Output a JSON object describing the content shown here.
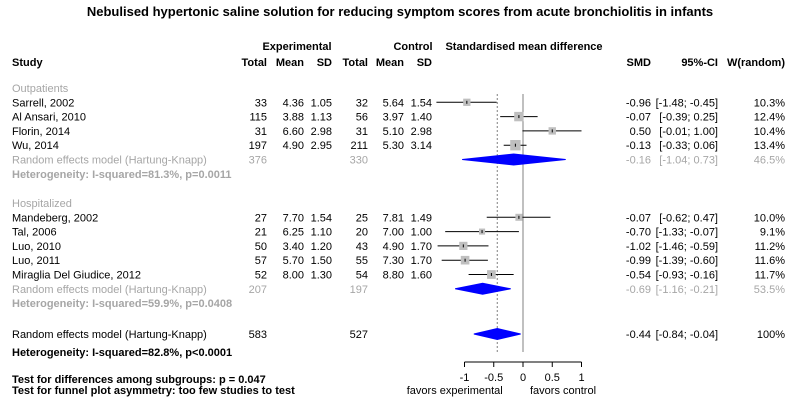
{
  "chart_data": {
    "type": "forest",
    "title": "Nebulised hypertonic saline solution for reducing symptom scores from acute bronchiolitis in infants",
    "headers": {
      "group_experimental": "Experimental",
      "group_control": "Control",
      "effect": "Standardised mean difference",
      "study": "Study",
      "total_e": "Total",
      "mean_e": "Mean",
      "sd_e": "SD",
      "total_c": "Total",
      "mean_c": "Mean",
      "sd_c": "SD",
      "smd": "SMD",
      "ci": "95%-CI",
      "weight": "W(random)"
    },
    "subgroups": [
      {
        "name": "Outpatients",
        "studies": [
          {
            "study": "Sarrell, 2002",
            "ne": "33",
            "me": "4.36",
            "sde": "1.05",
            "nc": "32",
            "mc": "5.64",
            "sdc": "1.54",
            "smd": -0.96,
            "lo": -1.48,
            "hi": -0.45,
            "smd_text": "-0.96",
            "ci_text": "[-1.48; -0.45]",
            "weight_text": "10.3%",
            "weight": 10.3
          },
          {
            "study": "Al Ansari, 2010",
            "ne": "115",
            "me": "3.88",
            "sde": "1.13",
            "nc": "56",
            "mc": "3.97",
            "sdc": "1.40",
            "smd": -0.07,
            "lo": -0.39,
            "hi": 0.25,
            "smd_text": "-0.07",
            "ci_text": "[-0.39; 0.25]",
            "weight_text": "12.4%",
            "weight": 12.4
          },
          {
            "study": "Florin, 2014",
            "ne": "31",
            "me": "6.60",
            "sde": "2.98",
            "nc": "31",
            "mc": "5.10",
            "sdc": "2.98",
            "smd": 0.5,
            "lo": -0.01,
            "hi": 1.0,
            "smd_text": "0.50",
            "ci_text": "[-0.01; 1.00]",
            "weight_text": "10.4%",
            "weight": 10.4
          },
          {
            "study": "Wu, 2014",
            "ne": "197",
            "me": "4.90",
            "sde": "2.95",
            "nc": "211",
            "mc": "5.30",
            "sdc": "3.14",
            "smd": -0.13,
            "lo": -0.33,
            "hi": 0.06,
            "smd_text": "-0.13",
            "ci_text": "[-0.33; 0.06]",
            "weight_text": "13.4%",
            "weight": 13.4
          }
        ],
        "pooled": {
          "label": "Random effects model (Hartung-Knapp)",
          "ne": "376",
          "nc": "330",
          "smd": -0.16,
          "lo": -1.04,
          "hi": 0.73,
          "smd_text": "-0.16",
          "ci_text": "[-1.04; 0.73]",
          "weight_text": "46.5%"
        },
        "heterogeneity": "Heterogeneity: I-squared=81.3%, p=0.0011"
      },
      {
        "name": "Hospitalized",
        "studies": [
          {
            "study": "Mandeberg, 2002",
            "ne": "27",
            "me": "7.70",
            "sde": "1.54",
            "nc": "25",
            "mc": "7.81",
            "sdc": "1.49",
            "smd": -0.07,
            "lo": -0.62,
            "hi": 0.47,
            "smd_text": "-0.07",
            "ci_text": "[-0.62; 0.47]",
            "weight_text": "10.0%",
            "weight": 10.0
          },
          {
            "study": "Tal, 2006",
            "ne": "21",
            "me": "6.25",
            "sde": "1.10",
            "nc": "20",
            "mc": "7.00",
            "sdc": "1.00",
            "smd": -0.7,
            "lo": -1.33,
            "hi": -0.07,
            "smd_text": "-0.70",
            "ci_text": "[-1.33; -0.07]",
            "weight_text": "9.1%",
            "weight": 9.1
          },
          {
            "study": "Luo, 2010",
            "ne": "50",
            "me": "3.40",
            "sde": "1.20",
            "nc": "43",
            "mc": "4.90",
            "sdc": "1.70",
            "smd": -1.02,
            "lo": -1.46,
            "hi": -0.59,
            "smd_text": "-1.02",
            "ci_text": "[-1.46; -0.59]",
            "weight_text": "11.2%",
            "weight": 11.2
          },
          {
            "study": "Luo, 2011",
            "ne": "57",
            "me": "5.70",
            "sde": "1.50",
            "nc": "55",
            "mc": "7.30",
            "sdc": "1.70",
            "smd": -0.99,
            "lo": -1.39,
            "hi": -0.6,
            "smd_text": "-0.99",
            "ci_text": "[-1.39; -0.60]",
            "weight_text": "11.6%",
            "weight": 11.6
          },
          {
            "study": "Miraglia Del Giudice, 2012",
            "ne": "52",
            "me": "8.00",
            "sde": "1.30",
            "nc": "54",
            "mc": "8.80",
            "sdc": "1.60",
            "smd": -0.54,
            "lo": -0.93,
            "hi": -0.16,
            "smd_text": "-0.54",
            "ci_text": "[-0.93; -0.16]",
            "weight_text": "11.7%",
            "weight": 11.7
          }
        ],
        "pooled": {
          "label": "Random effects model (Hartung-Knapp)",
          "ne": "207",
          "nc": "197",
          "smd": -0.69,
          "lo": -1.16,
          "hi": -0.21,
          "smd_text": "-0.69",
          "ci_text": "[-1.16; -0.21]",
          "weight_text": "53.5%"
        },
        "heterogeneity": "Heterogeneity: I-squared=59.9%, p=0.0408"
      }
    ],
    "overall": {
      "label": "Random effects model (Hartung-Knapp)",
      "ne": "583",
      "nc": "527",
      "smd": -0.44,
      "lo": -0.84,
      "hi": -0.04,
      "smd_text": "-0.44",
      "ci_text": "[-0.84; -0.04]",
      "weight_text": "100%"
    },
    "overall_heterogeneity": "Heterogeneity: I-squared=82.8%, p<0.0001",
    "footnotes": [
      "Test for differences among subgroups: p = 0.047",
      "Test for funnel plot asymmetry: too few studies to test"
    ],
    "xaxis": {
      "range": [
        -1,
        1
      ],
      "ticks": [
        -1,
        -0.5,
        0,
        0.5,
        1
      ],
      "tick_labels": [
        "-1",
        "-0.5",
        "0",
        "0.5",
        "1"
      ],
      "left_label": "favors experimental",
      "right_label": "favors control"
    },
    "reference_line": 0,
    "dashed_line": -0.44,
    "colors": {
      "box": "#bfbfbf",
      "diamond": "#0000ff",
      "text": "#000000",
      "grey_text": "#a6a6a6"
    }
  }
}
